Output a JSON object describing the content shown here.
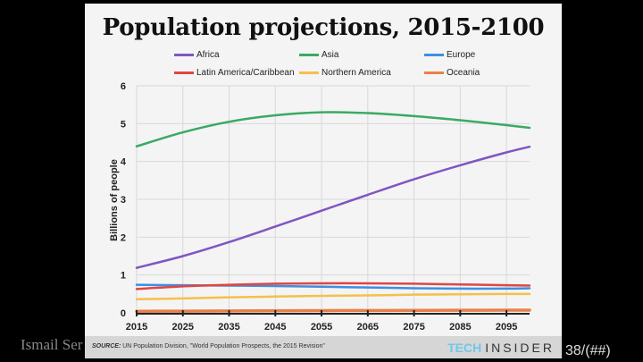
{
  "slide": {
    "author": "Ismail Ser",
    "page_number": "38/(##)"
  },
  "footer": {
    "source_label": "SOURCE:",
    "source_text": " UN Population Division, \"World Population Prospects, the 2015 Revision\"",
    "brand_tech": "TECH",
    "brand_insider": "INSIDER"
  },
  "colors": {
    "Africa": "#7e57c2",
    "Asia": "#3aaa63",
    "Europe": "#3d8fe0",
    "Latin America/Caribbean": "#e04545",
    "Northern America": "#f5c04a",
    "Oceania": "#e8804a"
  },
  "chart_data": {
    "type": "line",
    "title": "Population projections, 2015-2100",
    "xlabel": "",
    "ylabel": "Billions of people",
    "xlim": [
      2015,
      2100
    ],
    "ylim": [
      0,
      6
    ],
    "x_ticks": [
      "2015",
      "2025",
      "2035",
      "2045",
      "2055",
      "2065",
      "2075",
      "2085",
      "2095"
    ],
    "y_ticks": [
      "0",
      "1",
      "2",
      "3",
      "4",
      "5",
      "6"
    ],
    "grid": true,
    "legend_position": "top",
    "x": [
      2015,
      2025,
      2035,
      2045,
      2055,
      2065,
      2075,
      2085,
      2095,
      2100
    ],
    "series": [
      {
        "name": "Africa",
        "values": [
          1.19,
          1.5,
          1.87,
          2.28,
          2.7,
          3.12,
          3.53,
          3.9,
          4.24,
          4.39
        ]
      },
      {
        "name": "Asia",
        "values": [
          4.4,
          4.77,
          5.05,
          5.22,
          5.3,
          5.28,
          5.2,
          5.09,
          4.96,
          4.89
        ]
      },
      {
        "name": "Europe",
        "values": [
          0.74,
          0.73,
          0.72,
          0.71,
          0.69,
          0.67,
          0.65,
          0.64,
          0.64,
          0.65
        ]
      },
      {
        "name": "Latin America/Caribbean",
        "values": [
          0.63,
          0.7,
          0.74,
          0.77,
          0.78,
          0.78,
          0.77,
          0.75,
          0.73,
          0.72
        ]
      },
      {
        "name": "Northern America",
        "values": [
          0.36,
          0.38,
          0.41,
          0.43,
          0.45,
          0.46,
          0.48,
          0.49,
          0.5,
          0.5
        ]
      },
      {
        "name": "Oceania",
        "values": [
          0.04,
          0.045,
          0.05,
          0.055,
          0.06,
          0.062,
          0.065,
          0.068,
          0.07,
          0.071
        ]
      }
    ]
  }
}
